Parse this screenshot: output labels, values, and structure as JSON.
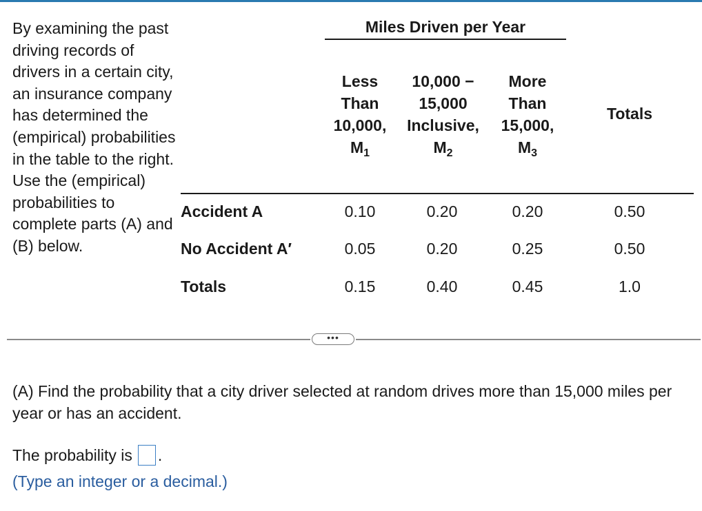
{
  "intro": "By examining the past driving records of drivers in a certain city, an insurance company has determined the (empirical) probabilities in the table to the right. Use the (empirical) probabilities to complete parts (A) and (B) below.",
  "table": {
    "group_title": "Miles Driven per Year",
    "columns": [
      {
        "lines": [
          "Less",
          "Than",
          "10,000,"
        ],
        "symbol": "M",
        "sub": "1"
      },
      {
        "lines": [
          "10,000 −",
          "15,000",
          "Inclusive,"
        ],
        "symbol": "M",
        "sub": "2"
      },
      {
        "lines": [
          "More",
          "Than",
          "15,000,"
        ],
        "symbol": "M",
        "sub": "3"
      }
    ],
    "totals_header": "Totals",
    "rows": [
      {
        "label": "Accident A",
        "values": [
          "0.10",
          "0.20",
          "0.20",
          "0.50"
        ]
      },
      {
        "label": "No Accident A′",
        "values": [
          "0.05",
          "0.20",
          "0.25",
          "0.50"
        ]
      },
      {
        "label": "Totals",
        "values": [
          "0.15",
          "0.40",
          "0.45",
          "1.0"
        ]
      }
    ]
  },
  "more_button": "•••",
  "question": "(A) Find the probability that a city driver selected at random drives more than 15,000 miles per year or has an accident.",
  "answer": {
    "prefix": "The probability is",
    "value": "",
    "suffix": ".",
    "hint": "(Type an integer or a decimal.)"
  }
}
